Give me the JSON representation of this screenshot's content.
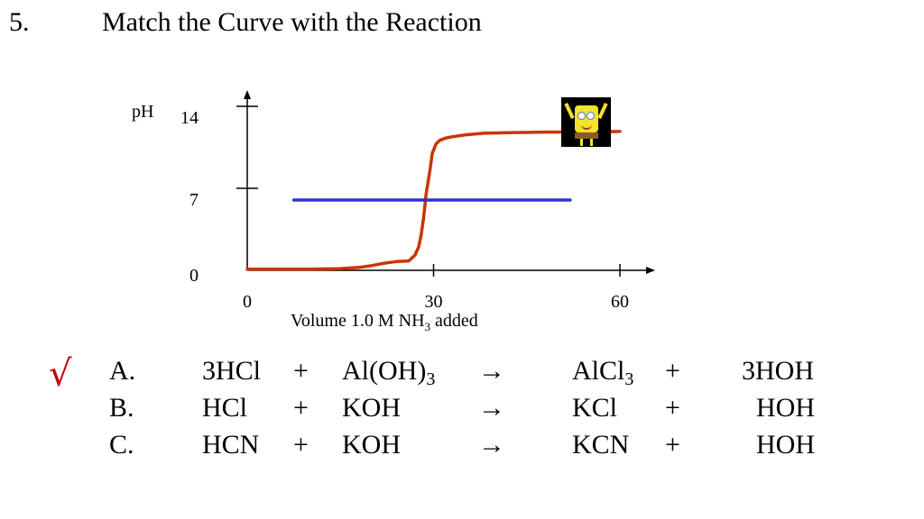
{
  "question": {
    "number": "5.",
    "title": "Match the Curve with the Reaction"
  },
  "chart_data": {
    "type": "line",
    "title": "",
    "ylabel": "pH",
    "xlabel_parts": {
      "pre": "Volume 1.0 M NH",
      "sub": "3",
      "post": " added"
    },
    "xlim": [
      0,
      60
    ],
    "ylim": [
      0,
      14
    ],
    "x_ticks": [
      0,
      30,
      60
    ],
    "y_ticks": [
      0,
      7,
      14
    ],
    "grid": false,
    "series": [
      {
        "color": "#cc3300",
        "x": [
          0,
          10,
          15,
          18,
          20,
          22,
          24,
          26,
          27,
          27.6,
          28,
          28.4,
          28.8,
          29.4,
          29.8,
          30.1,
          30.4,
          31,
          32,
          33,
          35,
          38,
          42,
          48,
          54,
          60
        ],
        "y": [
          0.1,
          0.1,
          0.15,
          0.25,
          0.4,
          0.6,
          0.75,
          0.8,
          1.3,
          2.0,
          3.0,
          4.5,
          6.5,
          8.5,
          10.0,
          10.4,
          10.8,
          11.1,
          11.3,
          11.4,
          11.55,
          11.7,
          11.75,
          11.8,
          11.8,
          11.85
        ]
      },
      {
        "color": "#3333cc",
        "x": [
          7.5,
          52
        ],
        "y": [
          6,
          6
        ]
      }
    ]
  },
  "check": {
    "symbol": "√",
    "color": "#c00000"
  },
  "reactions": [
    {
      "letter": "A.",
      "r1": "3HCl",
      "p1": "+",
      "r2_pre": "Al(OH)",
      "r2_sub": "3",
      "arrow": "→",
      "prod_pre": "AlCl",
      "prod_sub": "3",
      "p2": "+",
      "water": "3HOH"
    },
    {
      "letter": "B.",
      "r1": "HCl",
      "p1": "+",
      "r2_pre": "KOH",
      "r2_sub": "",
      "arrow": "→",
      "prod_pre": "KCl",
      "prod_sub": "",
      "p2": "+",
      "water": "HOH"
    },
    {
      "letter": "C.",
      "r1": "HCN",
      "p1": "+",
      "r2_pre": "KOH",
      "r2_sub": "",
      "arrow": "→",
      "prod_pre": "KCN",
      "prod_sub": "",
      "p2": "+",
      "water": "HOH"
    }
  ]
}
